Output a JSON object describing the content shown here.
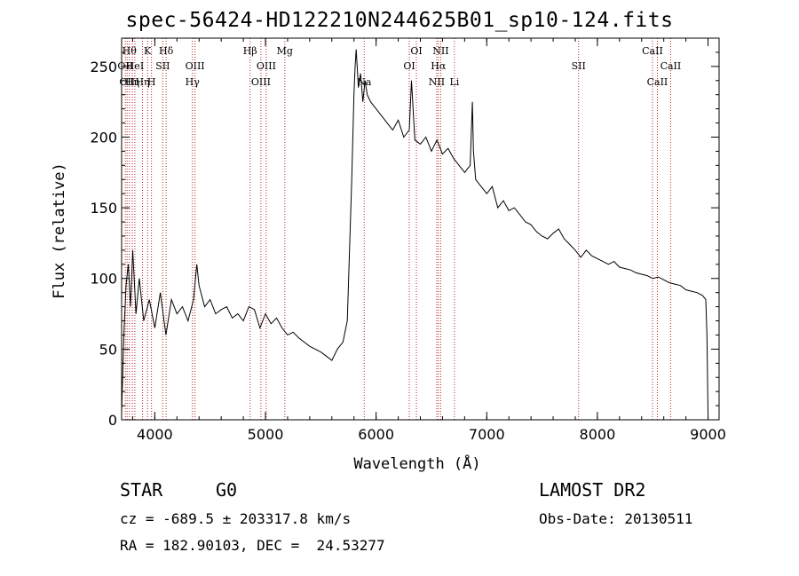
{
  "chart_data": {
    "type": "line",
    "title": "spec-56424-HD122210N244625B01_sp10-124.fits",
    "xlabel": "Wavelength (Å)",
    "ylabel": "Flux (relative)",
    "xlim": [
      3700,
      9100
    ],
    "ylim": [
      0,
      270
    ],
    "xticks": [
      4000,
      5000,
      6000,
      7000,
      8000,
      9000
    ],
    "yticks": [
      0,
      50,
      100,
      150,
      200,
      250
    ],
    "grid": false,
    "legend": "none",
    "series": [
      {
        "x": [
          3700,
          3720,
          3740,
          3760,
          3780,
          3800,
          3830,
          3860,
          3900,
          3950,
          4000,
          4050,
          4100,
          4150,
          4200,
          4250,
          4300,
          4350,
          4380,
          4400,
          4450,
          4500,
          4550,
          4600,
          4650,
          4700,
          4750,
          4800,
          4850,
          4900,
          4950,
          5000,
          5050,
          5100,
          5150,
          5200,
          5250,
          5300,
          5350,
          5400,
          5450,
          5500,
          5550,
          5600,
          5650,
          5700,
          5740,
          5760,
          5780,
          5800,
          5810,
          5820,
          5840,
          5860,
          5880,
          5900,
          5920,
          5950,
          6000,
          6050,
          6100,
          6150,
          6200,
          6250,
          6300,
          6320,
          6350,
          6400,
          6450,
          6500,
          6550,
          6600,
          6650,
          6700,
          6750,
          6800,
          6850,
          6870,
          6880,
          6900,
          6950,
          7000,
          7050,
          7100,
          7150,
          7200,
          7250,
          7300,
          7350,
          7400,
          7450,
          7500,
          7550,
          7600,
          7650,
          7700,
          7750,
          7800,
          7850,
          7900,
          7950,
          8000,
          8050,
          8100,
          8150,
          8200,
          8250,
          8300,
          8350,
          8400,
          8450,
          8500,
          8550,
          8600,
          8650,
          8700,
          8750,
          8800,
          8850,
          8900,
          8950,
          8980,
          8990,
          9000
        ],
        "y": [
          5,
          60,
          95,
          110,
          80,
          120,
          75,
          100,
          70,
          85,
          65,
          90,
          60,
          85,
          75,
          80,
          70,
          85,
          110,
          95,
          80,
          85,
          75,
          78,
          80,
          72,
          75,
          70,
          80,
          78,
          65,
          75,
          68,
          72,
          65,
          60,
          62,
          58,
          55,
          52,
          50,
          48,
          45,
          42,
          50,
          55,
          70,
          120,
          170,
          230,
          250,
          262,
          235,
          245,
          225,
          240,
          230,
          225,
          220,
          215,
          210,
          205,
          212,
          200,
          205,
          240,
          198,
          195,
          200,
          190,
          198,
          188,
          192,
          185,
          180,
          175,
          180,
          225,
          190,
          170,
          165,
          160,
          165,
          150,
          155,
          148,
          150,
          145,
          140,
          138,
          133,
          130,
          128,
          132,
          135,
          128,
          124,
          120,
          115,
          120,
          116,
          114,
          112,
          110,
          112,
          108,
          107,
          106,
          104,
          103,
          102,
          100,
          101,
          99,
          97,
          96,
          95,
          92,
          91,
          90,
          88,
          85,
          60,
          5
        ]
      }
    ],
    "line_labels": [
      {
        "wavelength": 3734,
        "label": "OII",
        "row": 1
      },
      {
        "wavelength": 3750,
        "label": "OII",
        "row": 2
      },
      {
        "wavelength": 3770,
        "label": "Hθ",
        "row": 0
      },
      {
        "wavelength": 3797,
        "label": "Hη",
        "row": 2
      },
      {
        "wavelength": 3820,
        "label": "HeI",
        "row": 1
      },
      {
        "wavelength": 3889,
        "label": "Hη",
        "row": 2
      },
      {
        "wavelength": 3934,
        "label": "K",
        "row": 0
      },
      {
        "wavelength": 3970,
        "label": "H",
        "row": 2
      },
      {
        "wavelength": 4072,
        "label": "SII",
        "row": 1
      },
      {
        "wavelength": 4102,
        "label": "Hδ",
        "row": 0
      },
      {
        "wavelength": 4340,
        "label": "Hγ",
        "row": 2
      },
      {
        "wavelength": 4363,
        "label": "OIII",
        "row": 1
      },
      {
        "wavelength": 4861,
        "label": "Hβ",
        "row": 0
      },
      {
        "wavelength": 4959,
        "label": "OIII",
        "row": 2
      },
      {
        "wavelength": 5007,
        "label": "OIII",
        "row": 1
      },
      {
        "wavelength": 5175,
        "label": "Mg",
        "row": 0
      },
      {
        "wavelength": 5893,
        "label": "Na",
        "row": 2
      },
      {
        "wavelength": 6300,
        "label": "OI",
        "row": 1
      },
      {
        "wavelength": 6364,
        "label": "OI",
        "row": 0
      },
      {
        "wavelength": 6548,
        "label": "NII",
        "row": 2
      },
      {
        "wavelength": 6563,
        "label": "Hα",
        "row": 1
      },
      {
        "wavelength": 6584,
        "label": "NII",
        "row": 0
      },
      {
        "wavelength": 6708,
        "label": "Li",
        "row": 2
      },
      {
        "wavelength": 7830,
        "label": "SII",
        "row": 1
      },
      {
        "wavelength": 8498,
        "label": "CaII",
        "row": 0
      },
      {
        "wavelength": 8542,
        "label": "CaII",
        "row": 2
      },
      {
        "wavelength": 8662,
        "label": "CaII",
        "row": 1
      }
    ]
  },
  "info": {
    "object_class": "STAR",
    "subclass": "G0",
    "survey": "LAMOST DR2",
    "velocity": "cz = -689.5 ± 203317.8 km/s",
    "obs_date": "Obs-Date: 20130511",
    "coords": "RA = 182.90103, DEC =  24.53277"
  }
}
